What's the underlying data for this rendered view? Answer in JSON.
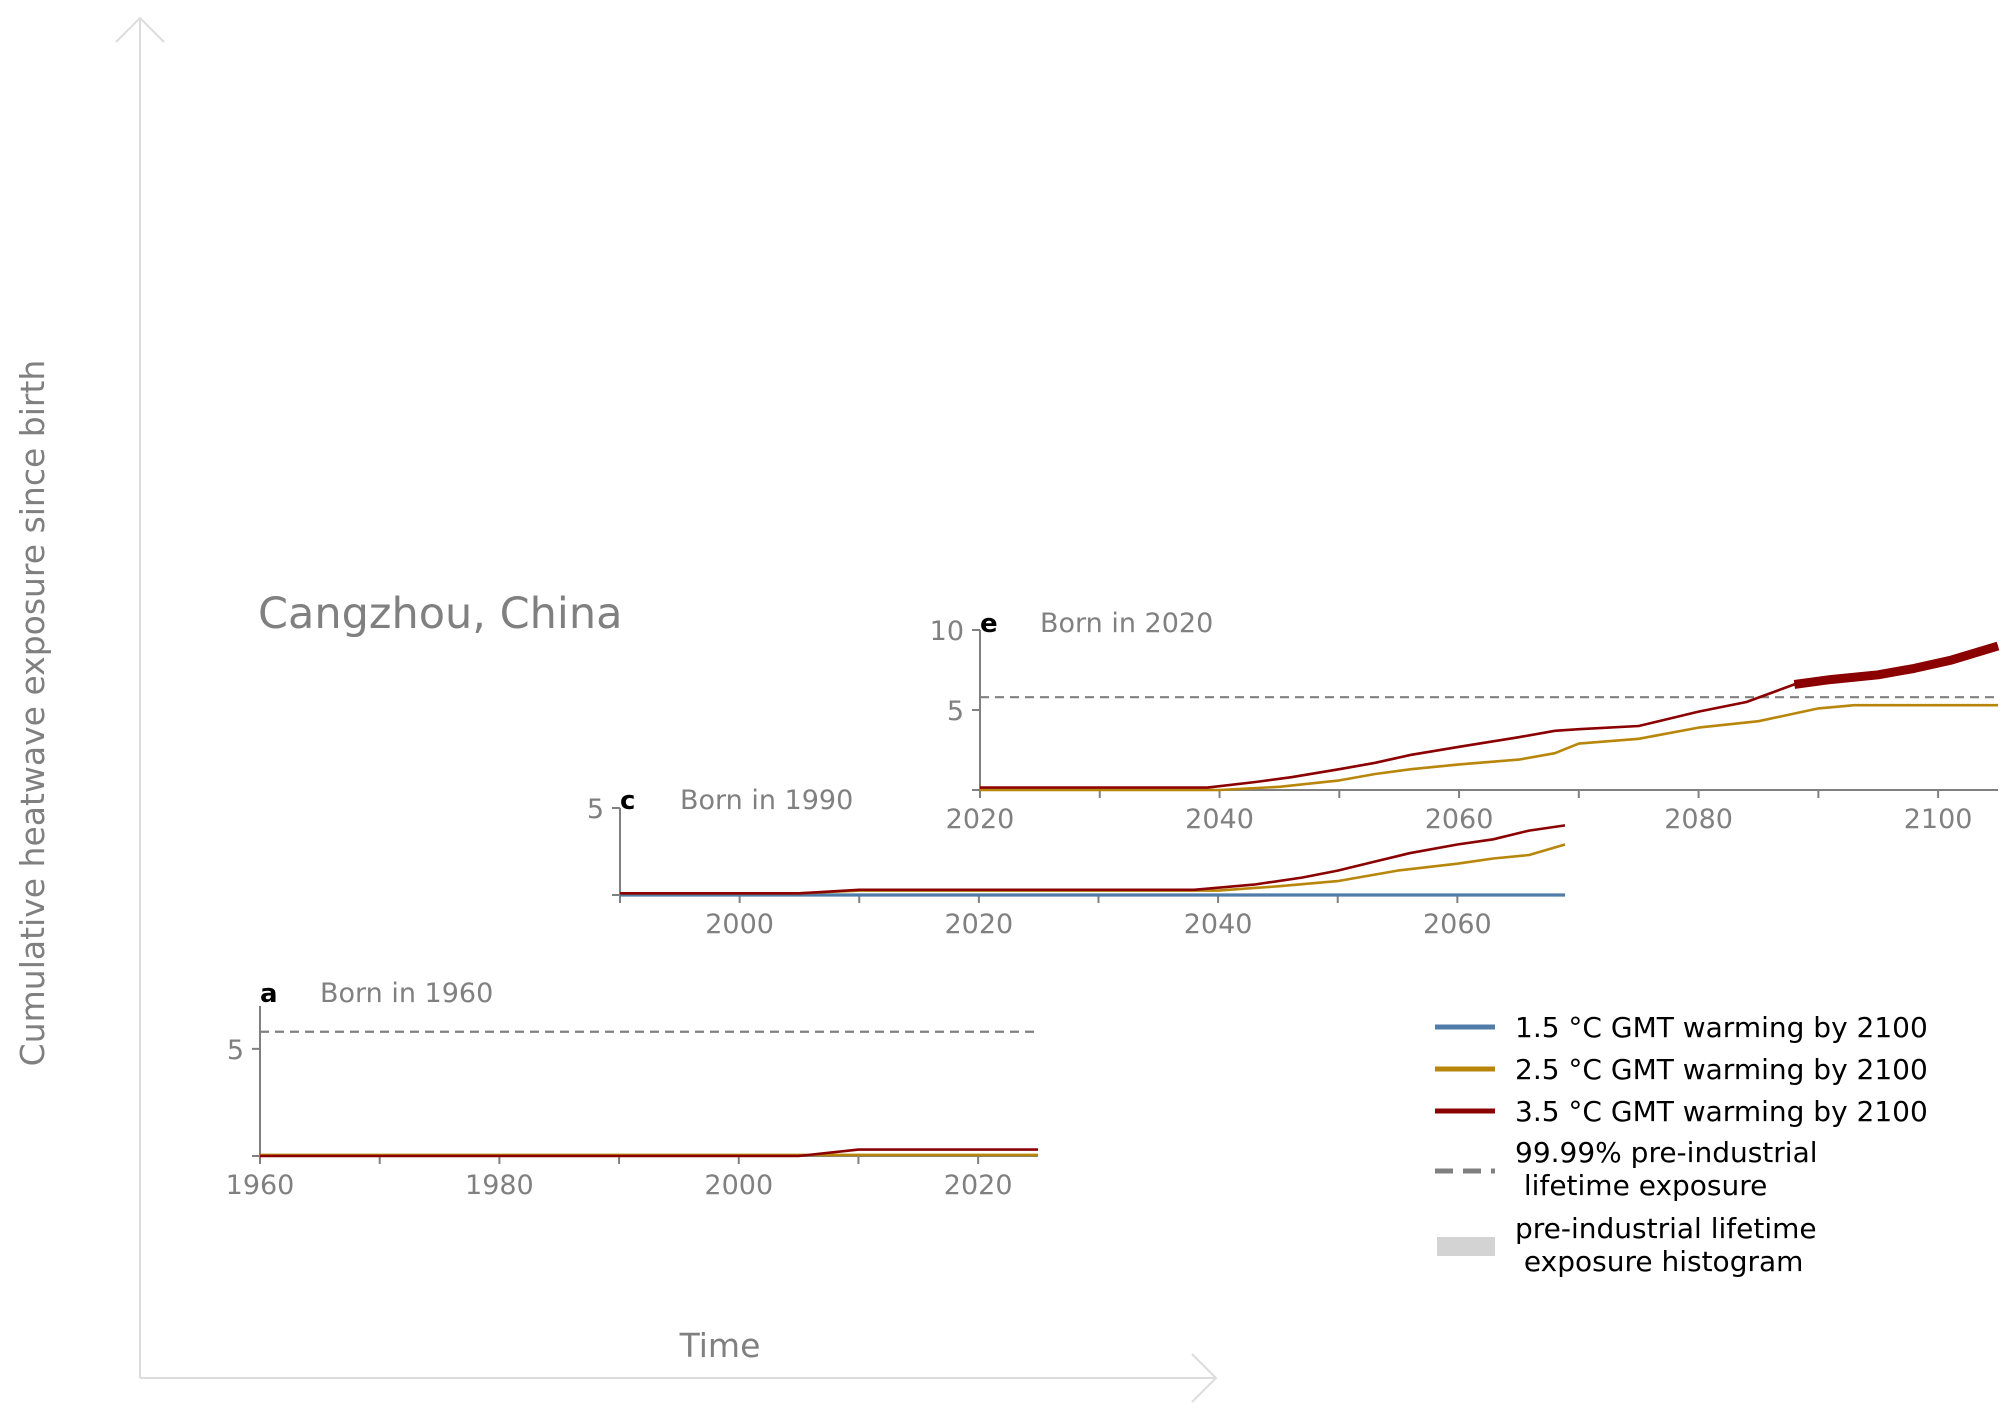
{
  "colors": {
    "gmt_1_5": "#4f7ca8",
    "gmt_2_5": "#b8860b",
    "gmt_3_5": "#8b0000",
    "pi_threshold": "#808080",
    "pi_hist": "#d3d3d3",
    "axis": "#808080",
    "text": "#808080"
  },
  "figure": {
    "location": "Cangzhou, China",
    "ylabel": "Cumulative heatwave exposure since birth",
    "xlabel": "Time"
  },
  "legend": {
    "items": [
      {
        "key": "gmt_1_5",
        "label": "1.5 °C GMT warming by 2100",
        "style": "line"
      },
      {
        "key": "gmt_2_5",
        "label": "2.5 °C GMT warming by 2100",
        "style": "line"
      },
      {
        "key": "gmt_3_5",
        "label": "3.5 °C GMT warming by 2100",
        "style": "line"
      },
      {
        "key": "pi_threshold",
        "label_line1": "99.99% pre-industrial",
        "label_line2": " lifetime exposure",
        "style": "dashed"
      },
      {
        "key": "pi_hist",
        "label_line1": "pre-industrial lifetime",
        "label_line2": " exposure histogram",
        "style": "patch"
      }
    ]
  },
  "chart_data": [
    {
      "panel": "e",
      "title": "Born in 2020",
      "type": "line",
      "xlim": [
        2020,
        2105
      ],
      "ylim": [
        0,
        10
      ],
      "xticks": [
        2020,
        2040,
        2060,
        2080,
        2100
      ],
      "xminor": [
        2030,
        2050,
        2070,
        2090
      ],
      "yticks": [
        5,
        10
      ],
      "threshold": 5.8,
      "highlight_after": 2085,
      "series": [
        {
          "key": "gmt_2_5",
          "x": [
            2020,
            2040,
            2045,
            2050,
            2053,
            2056,
            2060,
            2065,
            2068,
            2070,
            2075,
            2080,
            2085,
            2090,
            2093,
            2105
          ],
          "y": [
            0,
            0,
            0.2,
            0.6,
            1.0,
            1.3,
            1.6,
            1.9,
            2.3,
            2.9,
            3.2,
            3.9,
            4.3,
            5.1,
            5.3,
            5.3
          ]
        },
        {
          "key": "gmt_3_5",
          "x": [
            2020,
            2039,
            2043,
            2046,
            2050,
            2053,
            2056,
            2060,
            2065,
            2068,
            2070,
            2075,
            2080,
            2084,
            2088,
            2091,
            2095,
            2098,
            2101,
            2105
          ],
          "y": [
            0.15,
            0.15,
            0.5,
            0.8,
            1.3,
            1.7,
            2.2,
            2.7,
            3.3,
            3.7,
            3.8,
            4.0,
            4.9,
            5.5,
            6.6,
            6.9,
            7.2,
            7.6,
            8.1,
            9.0
          ]
        }
      ]
    },
    {
      "panel": "c",
      "title": "Born in 1990",
      "type": "line",
      "xlim": [
        1990,
        2069
      ],
      "ylim": [
        0,
        5
      ],
      "xticks": [
        2000,
        2020,
        2040,
        2060
      ],
      "xminor": [
        1990,
        2010,
        2030,
        2050
      ],
      "yticks": [
        5
      ],
      "series": [
        {
          "key": "gmt_1_5",
          "x": [
            1990,
            2069
          ],
          "y": [
            0,
            0
          ]
        },
        {
          "key": "gmt_2_5",
          "x": [
            1990,
            2005,
            2010,
            2040,
            2045,
            2050,
            2055,
            2060,
            2063,
            2066,
            2069
          ],
          "y": [
            0.1,
            0.1,
            0.25,
            0.25,
            0.5,
            0.8,
            1.4,
            1.8,
            2.1,
            2.3,
            2.9
          ]
        },
        {
          "key": "gmt_3_5",
          "x": [
            1990,
            2005,
            2010,
            2038,
            2043,
            2047,
            2050,
            2053,
            2056,
            2060,
            2063,
            2066,
            2069
          ],
          "y": [
            0.1,
            0.1,
            0.3,
            0.3,
            0.6,
            1.0,
            1.4,
            1.9,
            2.4,
            2.9,
            3.2,
            3.7,
            4.0
          ]
        }
      ]
    },
    {
      "panel": "a",
      "title": "Born in 1960",
      "type": "line",
      "xlim": [
        1960,
        2025
      ],
      "ylim": [
        0,
        7
      ],
      "xticks": [
        1960,
        1980,
        2000,
        2020
      ],
      "xminor": [
        1970,
        1990,
        2010
      ],
      "yticks": [
        5
      ],
      "threshold": 5.8,
      "series": [
        {
          "key": "gmt_2_5",
          "x": [
            1960,
            2025
          ],
          "y": [
            0.05,
            0.05
          ]
        },
        {
          "key": "gmt_3_5",
          "x": [
            1960,
            2005,
            2010,
            2025
          ],
          "y": [
            0,
            0,
            0.3,
            0.3
          ]
        }
      ]
    }
  ]
}
